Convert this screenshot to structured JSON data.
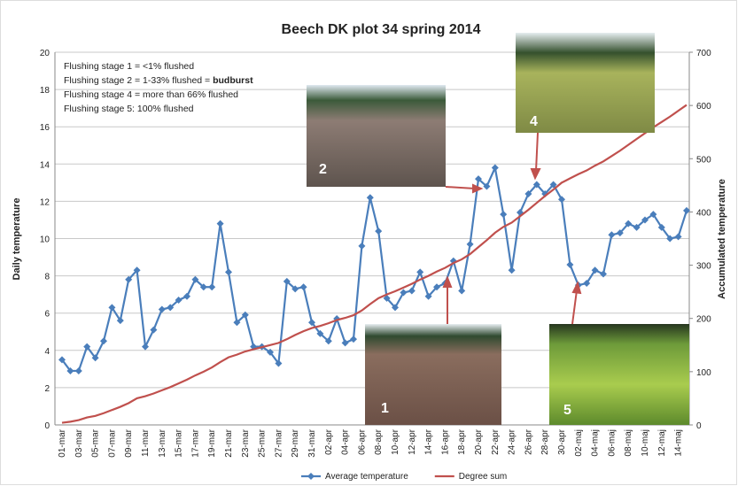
{
  "chart_data": {
    "type": "line",
    "title": "Beech DK plot 34 spring 2014",
    "y_label": "Daily temperature",
    "y2_label": "Accumulated temperature",
    "categories": [
      "01-mar",
      null,
      "03-mar",
      null,
      "05-mar",
      null,
      "07-mar",
      null,
      "09-mar",
      null,
      "11-mar",
      null,
      "13-mar",
      null,
      "15-mar",
      null,
      "17-mar",
      null,
      "19-mar",
      null,
      "21-mar",
      null,
      "23-mar",
      null,
      "25-mar",
      null,
      "27-mar",
      null,
      "29-mar",
      null,
      "31-mar",
      null,
      "02-apr",
      null,
      "04-apr",
      null,
      "06-apr",
      null,
      "08-apr",
      null,
      "10-apr",
      null,
      "12-apr",
      null,
      "14-apr",
      null,
      "16-apr",
      null,
      "18-apr",
      null,
      "20-apr",
      null,
      "22-apr",
      null,
      "24-apr",
      null,
      "26-apr",
      null,
      "28-apr",
      null,
      "30-apr",
      null,
      "02-maj",
      null,
      "04-maj",
      null,
      "06-maj",
      null,
      "08-maj",
      null,
      "10-maj",
      null,
      "12-maj",
      null,
      "14-maj",
      null
    ],
    "series": [
      {
        "name": "Average temperature",
        "color": "#4a7ebb",
        "values": [
          3.5,
          2.9,
          2.9,
          4.2,
          3.6,
          4.5,
          6.3,
          5.6,
          7.8,
          8.3,
          4.2,
          5.1,
          6.2,
          6.3,
          6.7,
          6.9,
          7.8,
          7.4,
          7.4,
          10.8,
          8.2,
          5.5,
          5.9,
          4.2,
          4.2,
          3.9,
          3.3,
          7.7,
          7.3,
          7.4,
          5.5,
          4.9,
          4.5,
          5.7,
          4.4,
          4.6,
          9.6,
          12.2,
          10.4,
          6.8,
          6.3,
          7.1,
          7.2,
          8.2,
          6.9,
          7.4,
          7.6,
          8.8,
          7.2,
          9.7,
          13.2,
          12.8,
          13.8,
          11.3,
          8.3,
          11.4,
          12.4,
          12.9,
          12.4,
          12.9,
          12.1,
          8.6,
          7.5,
          7.6,
          8.3,
          8.1,
          10.2,
          10.3,
          10.8,
          10.6,
          11.0,
          11.3,
          10.6,
          10.0,
          10.1,
          11.5
        ]
      },
      {
        "name": "Degree sum",
        "color": "#c0504d",
        "axis": "y2",
        "values": [
          4,
          6,
          9,
          14,
          17,
          22,
          28,
          34,
          41,
          50,
          54,
          59,
          65,
          71,
          78,
          85,
          93,
          100,
          108,
          118,
          127,
          132,
          138,
          142,
          146,
          150,
          154,
          161,
          169,
          176,
          182,
          186,
          191,
          197,
          201,
          206,
          215,
          227,
          238,
          245,
          251,
          258,
          265,
          273,
          280,
          288,
          295,
          304,
          311,
          321,
          334,
          347,
          361,
          372,
          380,
          392,
          404,
          417,
          430,
          442,
          455,
          463,
          471,
          478,
          487,
          495,
          505,
          515,
          526,
          537,
          548,
          559,
          569,
          579,
          590,
          601
        ]
      }
    ],
    "ylim": [
      0,
      20
    ],
    "yticks": [
      0,
      2,
      4,
      6,
      8,
      10,
      12,
      14,
      16,
      18,
      20
    ],
    "y2lim": [
      0,
      700
    ],
    "y2ticks": [
      0,
      100,
      200,
      300,
      400,
      500,
      600,
      700
    ],
    "grid": true,
    "legend": "bottom",
    "annotations": {
      "stages": [
        "Flushing stage 1 = <1% flushed",
        "Flushing stage 2 = 1-33% flushed = ",
        "Flushing stage 4 = more than 66% flushed",
        "Flushing stage 5: 100% flushed"
      ],
      "stage2_emphasis": "budburst",
      "photo_labels": [
        "1",
        "2",
        "4",
        "5"
      ]
    }
  }
}
